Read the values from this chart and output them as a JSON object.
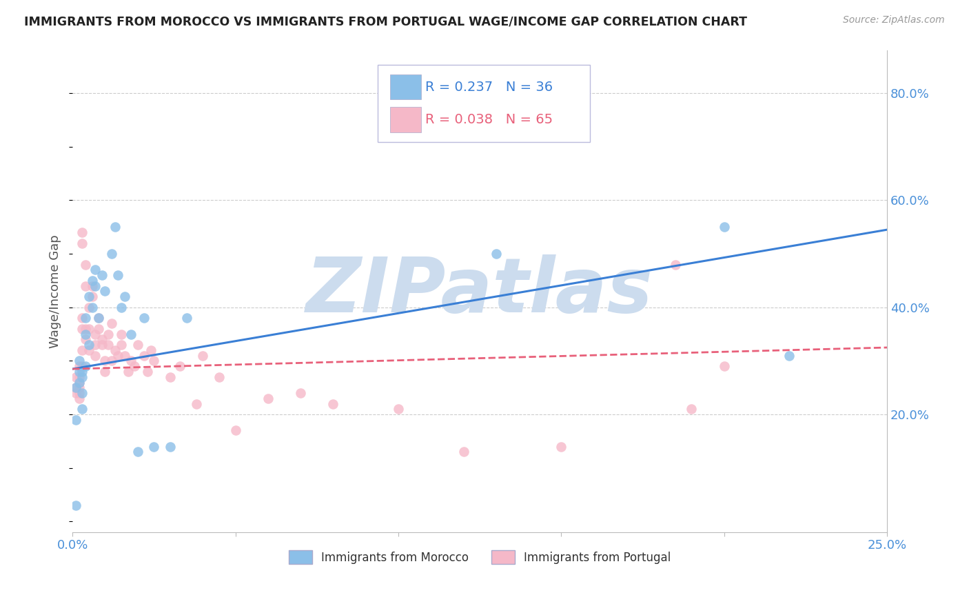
{
  "title": "IMMIGRANTS FROM MOROCCO VS IMMIGRANTS FROM PORTUGAL WAGE/INCOME GAP CORRELATION CHART",
  "source": "Source: ZipAtlas.com",
  "ylabel": "Wage/Income Gap",
  "xlim": [
    0.0,
    0.25
  ],
  "ylim": [
    -0.02,
    0.88
  ],
  "yticks": [
    0.2,
    0.4,
    0.6,
    0.8
  ],
  "ytick_labels": [
    "20.0%",
    "40.0%",
    "60.0%",
    "80.0%"
  ],
  "xticks": [
    0.0,
    0.05,
    0.1,
    0.15,
    0.2,
    0.25
  ],
  "xtick_labels": [
    "0.0%",
    "",
    "",
    "",
    "",
    "25.0%"
  ],
  "morocco_R": 0.237,
  "morocco_N": 36,
  "portugal_R": 0.038,
  "portugal_N": 65,
  "morocco_color": "#8bbfe8",
  "portugal_color": "#f5b8c8",
  "morocco_line_color": "#3a7fd5",
  "portugal_line_color": "#e8607a",
  "watermark": "ZIPatlas",
  "watermark_color": "#ccdcee",
  "background_color": "#ffffff",
  "morocco_x": [
    0.001,
    0.001,
    0.001,
    0.002,
    0.002,
    0.002,
    0.003,
    0.003,
    0.003,
    0.003,
    0.004,
    0.004,
    0.004,
    0.005,
    0.005,
    0.006,
    0.006,
    0.007,
    0.007,
    0.008,
    0.009,
    0.01,
    0.012,
    0.013,
    0.014,
    0.015,
    0.016,
    0.018,
    0.02,
    0.022,
    0.025,
    0.03,
    0.035,
    0.13,
    0.2,
    0.22
  ],
  "morocco_y": [
    0.03,
    0.19,
    0.25,
    0.26,
    0.28,
    0.3,
    0.28,
    0.27,
    0.24,
    0.21,
    0.29,
    0.35,
    0.38,
    0.42,
    0.33,
    0.45,
    0.4,
    0.44,
    0.47,
    0.38,
    0.46,
    0.43,
    0.5,
    0.55,
    0.46,
    0.4,
    0.42,
    0.35,
    0.13,
    0.38,
    0.14,
    0.14,
    0.38,
    0.5,
    0.55,
    0.31
  ],
  "portugal_x": [
    0.001,
    0.001,
    0.001,
    0.002,
    0.002,
    0.002,
    0.002,
    0.002,
    0.002,
    0.003,
    0.003,
    0.003,
    0.003,
    0.003,
    0.003,
    0.004,
    0.004,
    0.004,
    0.004,
    0.005,
    0.005,
    0.005,
    0.006,
    0.006,
    0.007,
    0.007,
    0.007,
    0.008,
    0.008,
    0.009,
    0.009,
    0.01,
    0.01,
    0.011,
    0.011,
    0.012,
    0.012,
    0.013,
    0.014,
    0.015,
    0.015,
    0.016,
    0.017,
    0.018,
    0.019,
    0.02,
    0.022,
    0.023,
    0.024,
    0.025,
    0.03,
    0.033,
    0.038,
    0.04,
    0.045,
    0.05,
    0.06,
    0.07,
    0.08,
    0.1,
    0.12,
    0.15,
    0.185,
    0.19,
    0.2
  ],
  "portugal_y": [
    0.27,
    0.25,
    0.24,
    0.29,
    0.27,
    0.26,
    0.25,
    0.24,
    0.23,
    0.54,
    0.52,
    0.38,
    0.36,
    0.32,
    0.29,
    0.48,
    0.44,
    0.36,
    0.34,
    0.4,
    0.36,
    0.32,
    0.44,
    0.42,
    0.35,
    0.33,
    0.31,
    0.38,
    0.36,
    0.34,
    0.33,
    0.3,
    0.28,
    0.35,
    0.33,
    0.37,
    0.3,
    0.32,
    0.31,
    0.35,
    0.33,
    0.31,
    0.28,
    0.3,
    0.29,
    0.33,
    0.31,
    0.28,
    0.32,
    0.3,
    0.27,
    0.29,
    0.22,
    0.31,
    0.27,
    0.17,
    0.23,
    0.24,
    0.22,
    0.21,
    0.13,
    0.14,
    0.48,
    0.21,
    0.29
  ],
  "morocco_line_x0": 0.0,
  "morocco_line_y0": 0.285,
  "morocco_line_x1": 0.25,
  "morocco_line_y1": 0.545,
  "portugal_line_x0": 0.0,
  "portugal_line_y0": 0.285,
  "portugal_line_x1": 0.25,
  "portugal_line_y1": 0.325
}
